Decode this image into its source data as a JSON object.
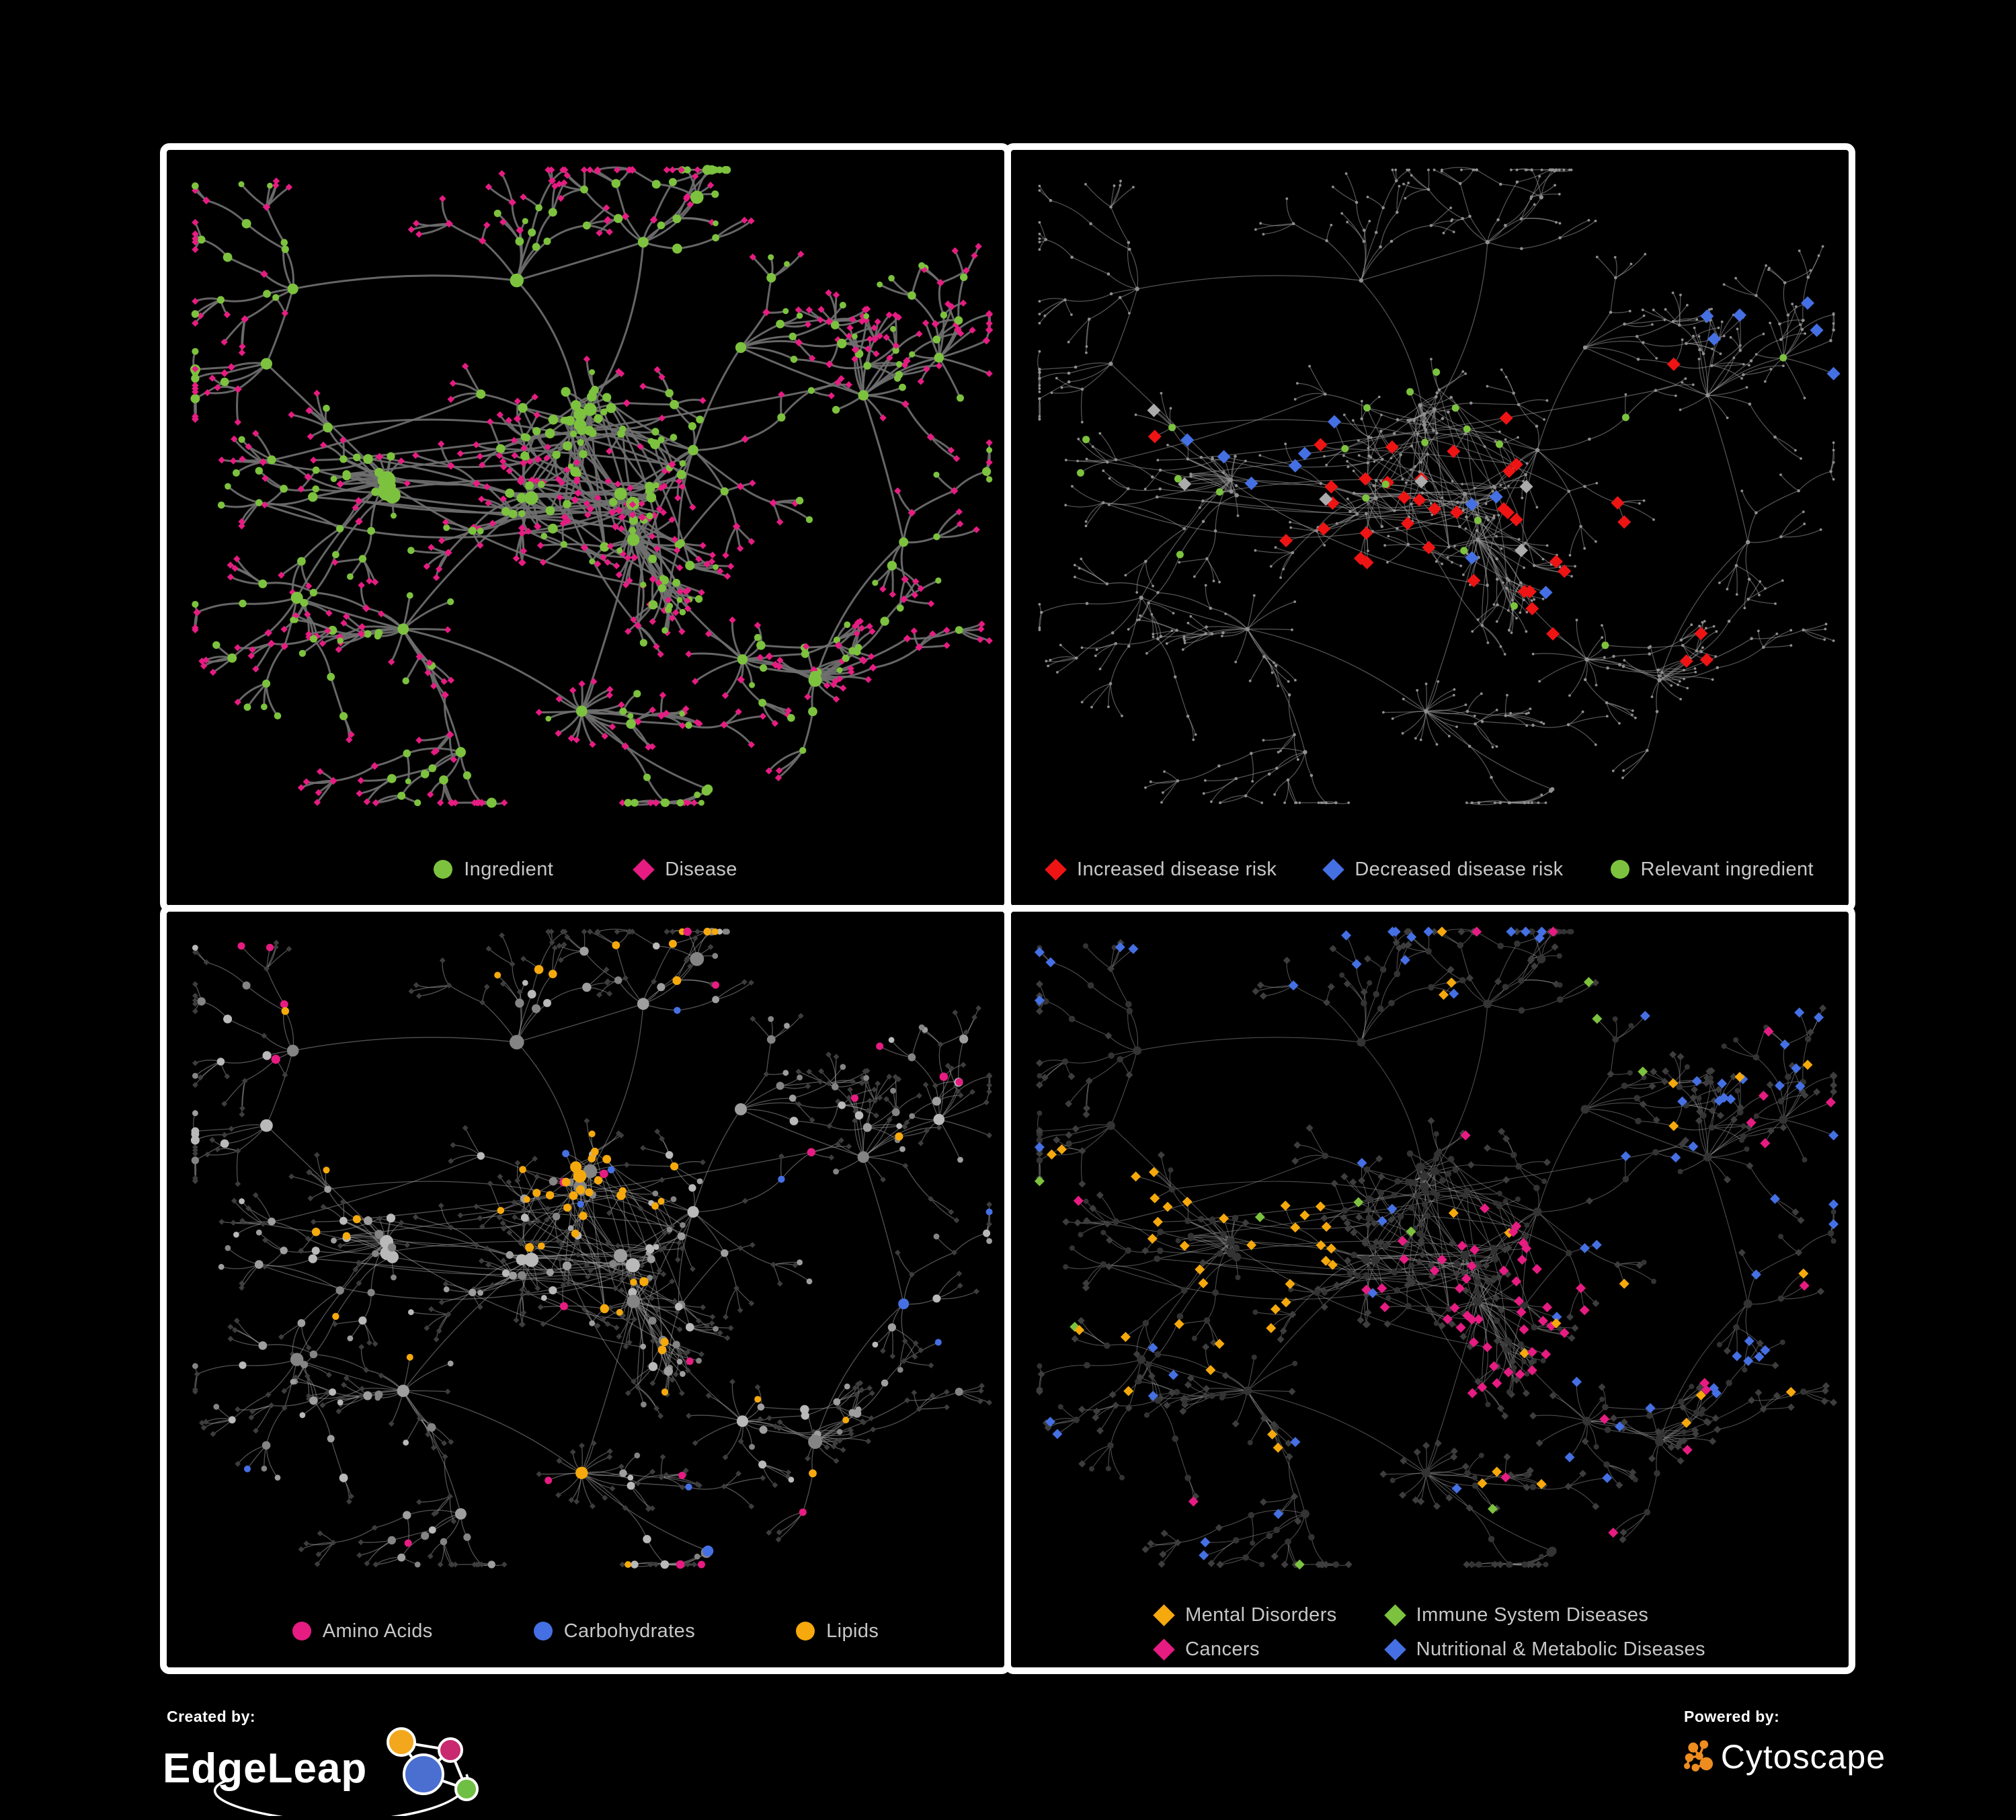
{
  "page": {
    "background": "#000000",
    "panel_border": "#ffffff"
  },
  "panels": {
    "p1": {
      "name": "ingredient-disease-network",
      "legend": [
        {
          "label": "Ingredient",
          "shape": "circle",
          "color": "#7dc23e"
        },
        {
          "label": "Disease",
          "shape": "diamond",
          "color": "#e61c82"
        }
      ]
    },
    "p2": {
      "name": "disease-risk-network",
      "legend": [
        {
          "label": "Increased disease risk",
          "shape": "diamond",
          "color": "#ee1414"
        },
        {
          "label": "Decreased disease risk",
          "shape": "diamond",
          "color": "#4570e4"
        },
        {
          "label": "Relevant ingredient",
          "shape": "circle",
          "color": "#7dc23e"
        }
      ]
    },
    "p3": {
      "name": "ingredient-class-network",
      "legend": [
        {
          "label": "Amino Acids",
          "shape": "circle",
          "color": "#e61c82"
        },
        {
          "label": "Carbohydrates",
          "shape": "circle",
          "color": "#4570e4"
        },
        {
          "label": "Lipids",
          "shape": "circle",
          "color": "#f5a90d"
        }
      ]
    },
    "p4": {
      "name": "disease-class-network",
      "legend": [
        {
          "label": "Mental Disorders",
          "shape": "diamond",
          "color": "#f5a90d"
        },
        {
          "label": "Immune System Diseases",
          "shape": "diamond",
          "color": "#7dc23e"
        },
        {
          "label": "Cancers",
          "shape": "diamond",
          "color": "#e61c82"
        },
        {
          "label": "Nutritional & Metabolic Diseases",
          "shape": "diamond",
          "color": "#4570e4"
        }
      ]
    }
  },
  "graph_style": {
    "edges": {
      "p1": {
        "color": "#6f6f6f",
        "width": 3.0,
        "opacity": 0.92
      },
      "p2": {
        "color": "#9a9a9a",
        "width": 1.25,
        "opacity": 0.55
      },
      "p3": {
        "color": "#a3a3a3",
        "width": 1.3,
        "opacity": 0.5
      },
      "p4": {
        "color": "#9a9a9a",
        "width": 1.1,
        "opacity": 0.5
      }
    },
    "node_colors": {
      "green": "#7dc23e",
      "magenta": "#e61c82",
      "red": "#ee1414",
      "blue": "#4570e4",
      "orange": "#f5a90d",
      "gray_diamond": "#ababab",
      "tiny_gray": "#8f8f8f",
      "gray_light": "#b9b9b9",
      "gray_mid": "#9e9e9e",
      "gray_dark": "#848484",
      "dim_diamond": "#3d3d3d",
      "dim_circle": "#333333"
    }
  },
  "footer": {
    "created_by": "Created by:",
    "edgeleap": "EdgeLeap",
    "powered_by": "Powered by:",
    "cytoscape": "Cytoscape",
    "edgeleap_colors": {
      "orange": "#f2a71c",
      "pink": "#c8296f",
      "blue": "#4a6fd0",
      "green": "#6fbf44"
    },
    "cytoscape_orange": "#ee8c20"
  }
}
